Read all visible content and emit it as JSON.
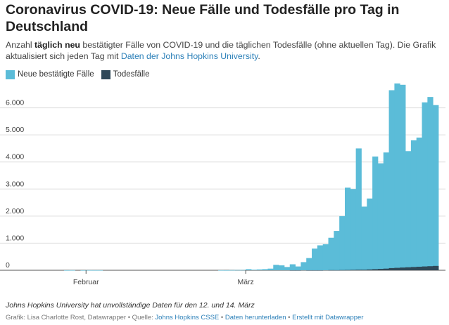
{
  "header": {
    "title": "Coronavirus COVID-19: Neue Fälle und Todesfälle pro Tag in Deutschland",
    "subtitle_part1": "Anzahl ",
    "subtitle_bold": "täglich neu",
    "subtitle_part2": " bestätigter Fälle von COVID-19 und die täglichen Todesfälle (ohne aktuellen Tag). Die Grafik aktualisiert sich jeden Tag mit ",
    "subtitle_link": "Daten der Johns Hopkins University",
    "subtitle_end": "."
  },
  "legend": {
    "items": [
      {
        "label": "Neue bestätigte Fälle",
        "color": "#5bbcd8"
      },
      {
        "label": "Todesfälle",
        "color": "#2f4858"
      }
    ]
  },
  "chart_data": {
    "type": "area",
    "title": "Coronavirus COVID-19: Neue Fälle und Todesfälle pro Tag in Deutschland",
    "xlabel": "",
    "ylabel": "",
    "x_tick_labels": [
      "Februar",
      "März"
    ],
    "y_tick_labels": [
      "0",
      "1.000",
      "2.000",
      "3.000",
      "4.000",
      "5.000",
      "6.000"
    ],
    "ylim": [
      0,
      7000
    ],
    "grid": true,
    "legend_position": "top-left",
    "x": [
      "2020-01-22",
      "2020-01-23",
      "2020-01-24",
      "2020-01-25",
      "2020-01-26",
      "2020-01-27",
      "2020-01-28",
      "2020-01-29",
      "2020-01-30",
      "2020-01-31",
      "2020-02-01",
      "2020-02-02",
      "2020-02-03",
      "2020-02-04",
      "2020-02-05",
      "2020-02-06",
      "2020-02-07",
      "2020-02-08",
      "2020-02-09",
      "2020-02-10",
      "2020-02-11",
      "2020-02-12",
      "2020-02-13",
      "2020-02-14",
      "2020-02-15",
      "2020-02-16",
      "2020-02-17",
      "2020-02-18",
      "2020-02-19",
      "2020-02-20",
      "2020-02-21",
      "2020-02-22",
      "2020-02-23",
      "2020-02-24",
      "2020-02-25",
      "2020-02-26",
      "2020-02-27",
      "2020-02-28",
      "2020-02-29",
      "2020-03-01",
      "2020-03-02",
      "2020-03-03",
      "2020-03-04",
      "2020-03-05",
      "2020-03-06",
      "2020-03-07",
      "2020-03-08",
      "2020-03-09",
      "2020-03-10",
      "2020-03-11",
      "2020-03-12",
      "2020-03-13",
      "2020-03-14",
      "2020-03-15",
      "2020-03-16",
      "2020-03-17",
      "2020-03-18",
      "2020-03-19",
      "2020-03-20",
      "2020-03-21",
      "2020-03-22",
      "2020-03-23",
      "2020-03-24",
      "2020-03-25",
      "2020-03-26",
      "2020-03-27",
      "2020-03-28",
      "2020-03-29",
      "2020-03-30",
      "2020-03-31",
      "2020-04-01",
      "2020-04-02",
      "2020-04-03",
      "2020-04-04"
    ],
    "series": [
      {
        "name": "Neue bestätigte Fälle",
        "color": "#5bbcd8",
        "values": [
          0,
          0,
          0,
          0,
          0,
          0,
          1,
          3,
          0,
          1,
          3,
          2,
          2,
          0,
          0,
          0,
          0,
          0,
          0,
          0,
          0,
          0,
          0,
          0,
          0,
          0,
          0,
          0,
          0,
          0,
          0,
          0,
          0,
          0,
          2,
          1,
          5,
          8,
          9,
          40,
          20,
          30,
          40,
          60,
          200,
          180,
          120,
          220,
          140,
          300,
          450,
          800,
          920,
          960,
          1200,
          1450,
          2000,
          3050,
          3000,
          4500,
          2350,
          2650,
          4200,
          3950,
          4350,
          6650,
          6900,
          6850,
          4400,
          4800,
          4900,
          6200,
          6400,
          6100
        ]
      },
      {
        "name": "Todesfälle",
        "color": "#2f4858",
        "values": [
          0,
          0,
          0,
          0,
          0,
          0,
          0,
          0,
          0,
          0,
          0,
          0,
          0,
          0,
          0,
          0,
          0,
          0,
          0,
          0,
          0,
          0,
          0,
          0,
          0,
          0,
          0,
          0,
          0,
          0,
          0,
          0,
          0,
          0,
          0,
          0,
          0,
          0,
          0,
          0,
          0,
          0,
          0,
          0,
          0,
          0,
          0,
          1,
          1,
          0,
          1,
          1,
          1,
          0,
          5,
          4,
          8,
          11,
          15,
          20,
          20,
          30,
          40,
          50,
          60,
          80,
          90,
          100,
          110,
          120,
          130,
          140,
          150,
          160
        ]
      }
    ]
  },
  "note": "Johns Hopkins University hat unvollständige Daten für den 12. und 14. März",
  "footer": {
    "credit": "Grafik: Lisa Charlotte Rost, Datawrapper • Quelle: ",
    "source_link": "Johns Hopkins CSSE",
    "sep1": " • ",
    "download_link": "Daten herunterladen",
    "sep2": " • ",
    "made_with_link": "Erstellt mit Datawrapper"
  }
}
